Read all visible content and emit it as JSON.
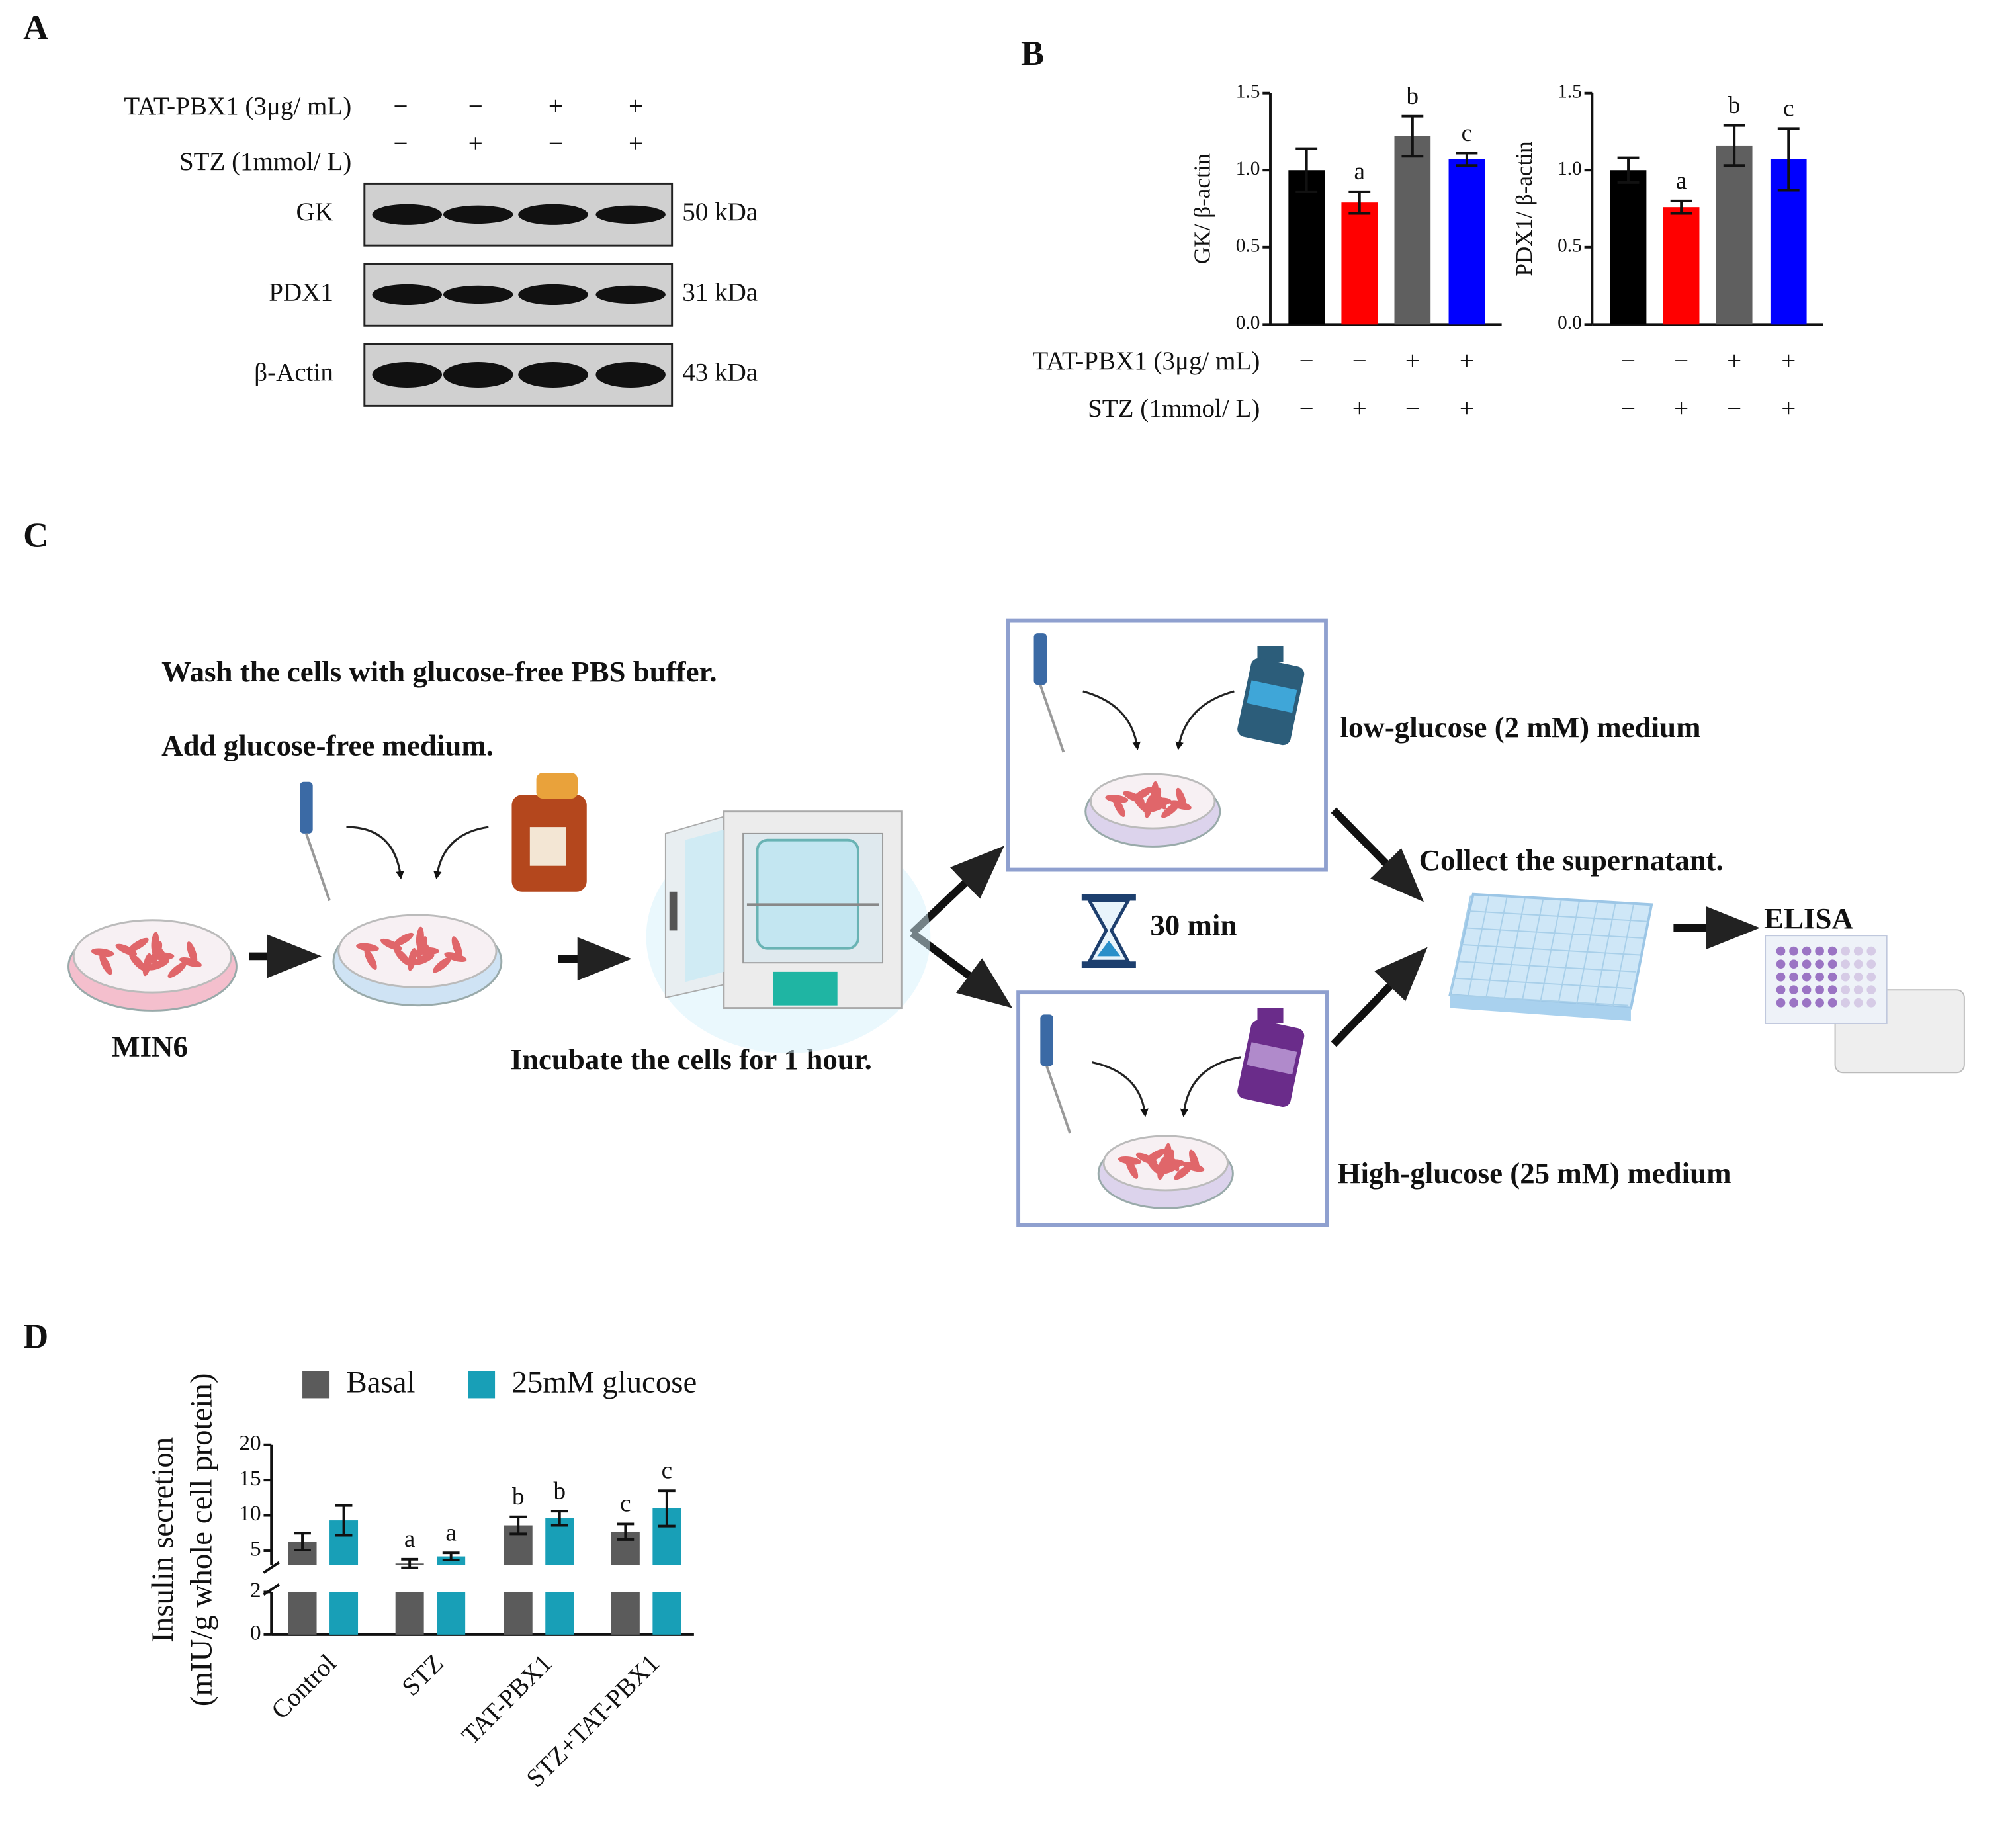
{
  "panel_labels": [
    "A",
    "B",
    "C",
    "D"
  ],
  "blot": {
    "conditions": [
      {
        "label": "TAT-PBX1 (3μg/ mL)",
        "signs": [
          "−",
          "−",
          "+",
          "+"
        ]
      },
      {
        "label": "STZ (1mmol/ L)",
        "signs": [
          "−",
          "+",
          "−",
          "+"
        ]
      }
    ],
    "bands": [
      {
        "name": "GK",
        "size": "50 kDa"
      },
      {
        "name": "PDX1",
        "size": "31 kDa"
      },
      {
        "name": "β-Actin",
        "size": "43 kDa"
      }
    ]
  },
  "chart_data": [
    {
      "type": "bar",
      "ylabel": "GK/ β-actin",
      "categories": [
        null,
        null,
        null,
        null
      ],
      "values": [
        1.0,
        0.79,
        1.22,
        1.07
      ],
      "errors": [
        0.14,
        0.07,
        0.13,
        0.04
      ],
      "annotations": [
        null,
        "a",
        "b",
        "c"
      ],
      "colors": [
        "#000000",
        "#ff0000",
        "#5f5f5f",
        "#0000ff"
      ],
      "ylim": [
        0,
        1.5
      ],
      "yticks": [
        {
          "value": 0,
          "label": "0.0"
        },
        0.5,
        {
          "value": 1,
          "label": "1.0"
        },
        1.5
      ]
    },
    {
      "type": "bar",
      "ylabel": "PDX1/ β-actin",
      "categories": [
        null,
        null,
        null,
        null
      ],
      "values": [
        1.0,
        0.76,
        1.16,
        1.07
      ],
      "errors": [
        0.08,
        0.04,
        0.13,
        0.2
      ],
      "annotations": [
        null,
        "a",
        "b",
        "c"
      ],
      "colors": [
        "#000000",
        "#ff0000",
        "#5f5f5f",
        "#0000ff"
      ],
      "ylim": [
        0,
        1.5
      ],
      "yticks": [
        {
          "value": 0,
          "label": "0.0"
        },
        0.5,
        {
          "value": 1,
          "label": "1.0"
        },
        1.5
      ]
    },
    {
      "type": "bar",
      "ylabel": [
        "Insulin secretion",
        "(mIU/g whole cell protein)"
      ],
      "categories": [
        "Control",
        "STZ",
        "TAT-PBX1",
        "STZ+TAT-PBX1"
      ],
      "series": [
        {
          "name": "Basal",
          "color": "#5b5b5b",
          "values": [
            6.3,
            3.2,
            8.6,
            7.7
          ],
          "errors": [
            1.2,
            0.6,
            1.2,
            1.1
          ],
          "annotations": [
            null,
            "a",
            "b",
            "c"
          ]
        },
        {
          "name": "25mM glucose",
          "color": "#189fb7",
          "values": [
            9.3,
            4.2,
            9.6,
            11.0
          ],
          "errors": [
            2.1,
            0.5,
            1.0,
            2.5
          ],
          "annotations": [
            null,
            "a",
            "b",
            "c"
          ]
        }
      ],
      "ylim": [
        0,
        20
      ],
      "ybreak": [
        2,
        3
      ],
      "yticks": [
        0,
        2,
        5,
        10,
        15,
        20
      ]
    }
  ],
  "workflow": {
    "wash": "Wash the cells with glucose-free PBS buffer.",
    "add": "Add glucose-free medium.",
    "cell_line": "MIN6",
    "incubate": "Incubate the cells for 1 hour.",
    "low": "low-glucose (2 mM) medium",
    "time": "30 min",
    "high": "High-glucose (25 mM) medium",
    "collect": "Collect the supernatant.",
    "assay": "ELISA"
  }
}
